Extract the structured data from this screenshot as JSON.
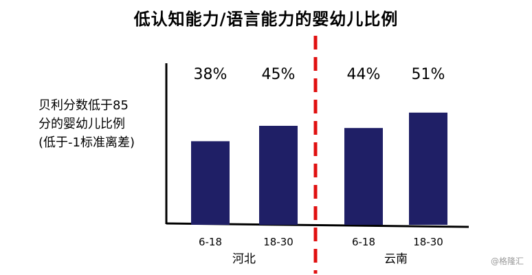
{
  "chart_data": {
    "type": "bar",
    "title": "低认知能力/语言能力的婴幼儿比例",
    "ylabel": "贝利分数低于85\n分的婴幼儿比例\n(低于-1标准离差)",
    "xlabel": "",
    "ylim": [
      0,
      70
    ],
    "categories": [
      "6-18",
      "18-30",
      "6-18",
      "18-30"
    ],
    "groups": [
      "河北",
      "云南"
    ],
    "values": [
      38,
      45,
      44,
      51
    ],
    "data_labels": [
      "38%",
      "45%",
      "44%",
      "51%"
    ],
    "bar_color": "#1f1f66",
    "divider_color": "#e01010",
    "grid": false,
    "legend": "none"
  },
  "watermark": "@格隆汇"
}
